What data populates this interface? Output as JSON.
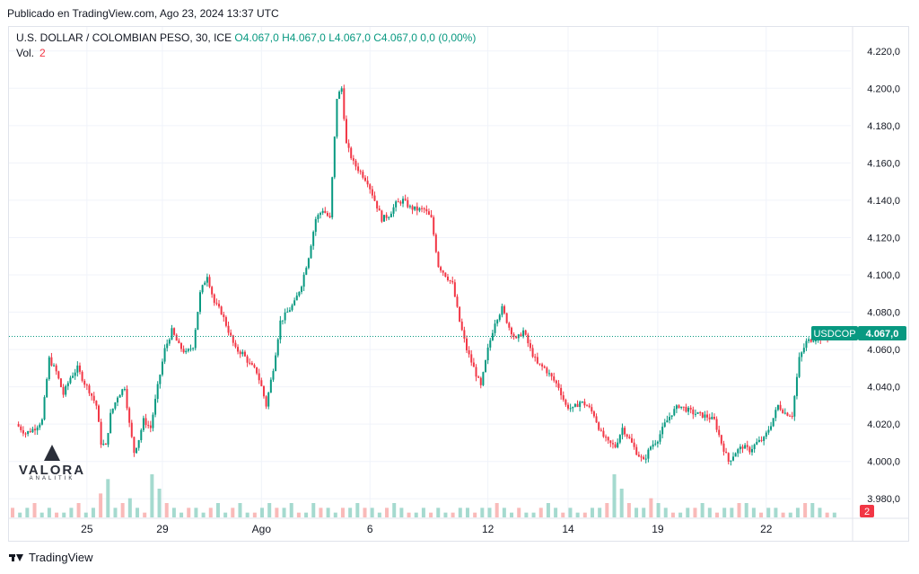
{
  "header": {
    "published": "Publicado en TradingView.com, Ago 23, 2024 13:37 UTC"
  },
  "legend": {
    "symbol": "U.S. DOLLAR / COLOMBIAN PESO, 30, ICE",
    "open": "O4.067,0",
    "high": "H4.067,0",
    "low": "L4.067,0",
    "close": "C4.067,0",
    "change": "0,0 (0,00%)",
    "vol_label": "Vol.",
    "vol_value": "2"
  },
  "price_tag": {
    "symbol": "USDCOP",
    "value": "4.067,0"
  },
  "vol_tag": "2",
  "watermark": {
    "title": "VALORA",
    "subtitle": "ANALITIK"
  },
  "footer": {
    "brand": "TradingView"
  },
  "colors": {
    "up": "#089981",
    "down": "#f23645",
    "grid": "#f0f3fa",
    "axis_text": "#131722"
  },
  "chart_data": {
    "type": "candlestick",
    "ylim": [
      3970,
      4230
    ],
    "yticks": [
      "4.220,0",
      "4.200,0",
      "4.180,0",
      "4.160,0",
      "4.140,0",
      "4.120,0",
      "4.100,0",
      "4.080,0",
      "4.060,0",
      "4.040,0",
      "4.020,0",
      "4.000,0",
      "3.980,0"
    ],
    "ytick_values": [
      4220,
      4200,
      4180,
      4160,
      4140,
      4120,
      4100,
      4080,
      4060,
      4040,
      4020,
      4000,
      3980
    ],
    "xticks": [
      "25",
      "29",
      "Ago",
      "6",
      "12",
      "14",
      "19",
      "22"
    ],
    "last_price": 4067.0,
    "close_path": [
      [
        0,
        4020
      ],
      [
        4,
        4015
      ],
      [
        8,
        4018
      ],
      [
        11,
        4022
      ],
      [
        14,
        4055
      ],
      [
        17,
        4048
      ],
      [
        20,
        4036
      ],
      [
        23,
        4045
      ],
      [
        26,
        4050
      ],
      [
        29,
        4042
      ],
      [
        31,
        4038
      ],
      [
        34,
        4030
      ],
      [
        36,
        4010
      ],
      [
        38,
        4008
      ],
      [
        40,
        4025
      ],
      [
        43,
        4035
      ],
      [
        46,
        4040
      ],
      [
        48,
        4020
      ],
      [
        50,
        4005
      ],
      [
        52,
        4012
      ],
      [
        54,
        4022
      ],
      [
        57,
        4018
      ],
      [
        60,
        4040
      ],
      [
        63,
        4060
      ],
      [
        66,
        4070
      ],
      [
        69,
        4062
      ],
      [
        72,
        4058
      ],
      [
        75,
        4062
      ],
      [
        78,
        4090
      ],
      [
        81,
        4100
      ],
      [
        84,
        4085
      ],
      [
        87,
        4080
      ],
      [
        90,
        4070
      ],
      [
        93,
        4060
      ],
      [
        96,
        4058
      ],
      [
        99,
        4052
      ],
      [
        102,
        4048
      ],
      [
        104,
        4040
      ],
      [
        106,
        4030
      ],
      [
        109,
        4050
      ],
      [
        112,
        4075
      ],
      [
        115,
        4080
      ],
      [
        118,
        4085
      ],
      [
        121,
        4095
      ],
      [
        124,
        4110
      ],
      [
        127,
        4130
      ],
      [
        130,
        4135
      ],
      [
        133,
        4130
      ],
      [
        136,
        4195
      ],
      [
        138,
        4200
      ],
      [
        140,
        4170
      ],
      [
        143,
        4160
      ],
      [
        146,
        4155
      ],
      [
        149,
        4150
      ],
      [
        152,
        4140
      ],
      [
        155,
        4130
      ],
      [
        158,
        4132
      ],
      [
        161,
        4138
      ],
      [
        164,
        4140
      ],
      [
        167,
        4136
      ],
      [
        170,
        4135
      ],
      [
        173,
        4135
      ],
      [
        176,
        4130
      ],
      [
        179,
        4105
      ],
      [
        182,
        4100
      ],
      [
        185,
        4095
      ],
      [
        188,
        4075
      ],
      [
        191,
        4060
      ],
      [
        194,
        4050
      ],
      [
        197,
        4040
      ],
      [
        200,
        4060
      ],
      [
        203,
        4075
      ],
      [
        206,
        4082
      ],
      [
        209,
        4072
      ],
      [
        212,
        4065
      ],
      [
        215,
        4070
      ],
      [
        218,
        4060
      ],
      [
        221,
        4052
      ],
      [
        224,
        4050
      ],
      [
        227,
        4045
      ],
      [
        230,
        4040
      ],
      [
        233,
        4030
      ],
      [
        236,
        4028
      ],
      [
        239,
        4032
      ],
      [
        242,
        4030
      ],
      [
        245,
        4025
      ],
      [
        248,
        4015
      ],
      [
        251,
        4010
      ],
      [
        254,
        4008
      ],
      [
        257,
        4018
      ],
      [
        260,
        4012
      ],
      [
        263,
        4005
      ],
      [
        266,
        4000
      ],
      [
        269,
        4008
      ],
      [
        272,
        4012
      ],
      [
        275,
        4020
      ],
      [
        278,
        4026
      ],
      [
        281,
        4030
      ],
      [
        284,
        4028
      ],
      [
        287,
        4026
      ],
      [
        290,
        4025
      ],
      [
        293,
        4024
      ],
      [
        296,
        4022
      ],
      [
        299,
        4010
      ],
      [
        302,
        4000
      ],
      [
        305,
        4005
      ],
      [
        308,
        4008
      ],
      [
        311,
        4006
      ],
      [
        314,
        4010
      ],
      [
        317,
        4012
      ],
      [
        320,
        4020
      ],
      [
        323,
        4030
      ],
      [
        326,
        4026
      ],
      [
        329,
        4025
      ],
      [
        332,
        4055
      ],
      [
        335,
        4064
      ],
      [
        338,
        4066
      ],
      [
        341,
        4066
      ],
      [
        344,
        4067
      ],
      [
        347,
        4067
      ]
    ],
    "volumes": [
      2,
      1,
      2,
      3,
      1,
      2,
      1,
      1,
      2,
      3,
      1,
      2,
      5,
      8,
      2,
      3,
      4,
      2,
      1,
      9,
      6,
      3,
      2,
      1,
      2,
      2,
      1,
      2,
      3,
      1,
      2,
      3,
      1,
      1,
      2,
      3,
      2,
      2,
      3,
      1,
      1,
      3,
      2,
      2,
      1,
      2,
      2,
      3,
      2,
      2,
      1,
      2,
      3,
      2,
      1,
      1,
      2,
      1,
      2,
      1,
      1,
      2,
      2,
      1,
      2,
      2,
      3,
      2,
      1,
      2,
      1,
      1,
      2,
      3,
      2,
      1,
      2,
      1,
      1,
      2,
      2,
      3,
      9,
      6,
      3,
      2,
      2,
      4,
      3,
      2,
      1,
      1,
      2,
      2,
      3,
      2,
      1,
      2,
      2,
      3,
      3,
      2,
      1,
      2,
      2,
      1,
      1,
      2,
      3,
      3,
      2,
      1,
      1
    ],
    "session_labels_at": [
      30,
      62,
      104,
      150,
      200,
      234,
      272,
      318
    ]
  }
}
